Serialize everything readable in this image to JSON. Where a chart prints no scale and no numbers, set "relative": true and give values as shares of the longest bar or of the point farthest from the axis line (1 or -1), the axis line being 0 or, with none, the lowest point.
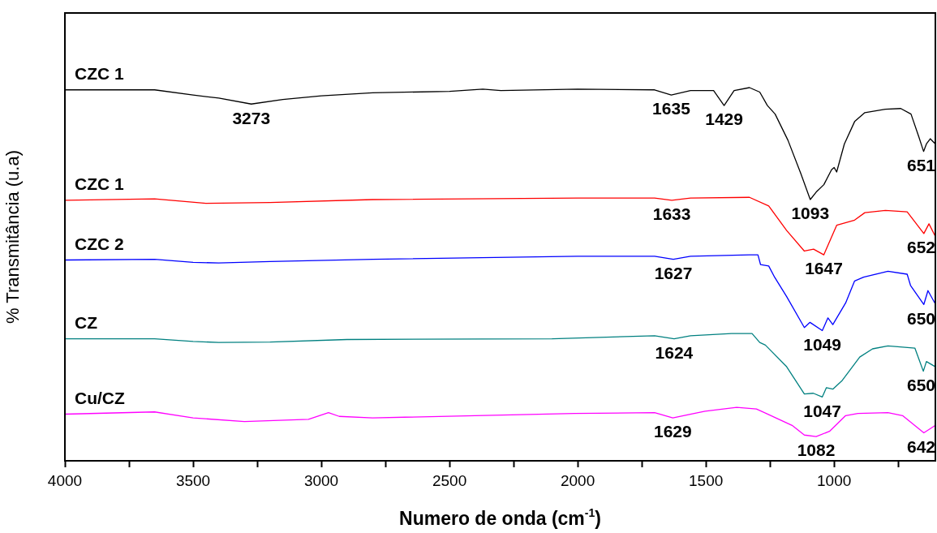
{
  "chart_data": {
    "type": "line",
    "relative": true,
    "xlabel": "Numero de onda (cm$^{-1}$)",
    "ylabel": "% Transmitância (u.a)",
    "xlim": [
      4000,
      605
    ],
    "xticks": [
      4000,
      {
        "value": 3750,
        "label": null
      },
      3500,
      {
        "value": 3250,
        "label": null
      },
      3000,
      {
        "value": 2750,
        "label": null
      },
      2500,
      {
        "value": 2250,
        "label": null
      },
      2000,
      {
        "value": 1750,
        "label": null
      },
      1500,
      {
        "value": 1250,
        "label": null
      },
      1000,
      {
        "value": 750,
        "label": null
      }
    ],
    "series": [
      {
        "name": "CZC 1",
        "color": "#000000",
        "x": [
          4000,
          3650,
          3500,
          3400,
          3273,
          3150,
          3000,
          2800,
          2500,
          2370,
          2300,
          2000,
          1700,
          1635,
          1560,
          1470,
          1429,
          1390,
          1330,
          1290,
          1260,
          1230,
          1180,
          1130,
          1093,
          1070,
          1040,
          1010,
          1000,
          990,
          960,
          920,
          880,
          800,
          740,
          700,
          670,
          651,
          640,
          625,
          605
        ],
        "values": [
          0.994,
          0.994,
          0.98,
          0.972,
          0.956,
          0.968,
          0.978,
          0.986,
          0.99,
          0.996,
          0.992,
          0.996,
          0.994,
          0.98,
          0.992,
          0.992,
          0.952,
          0.992,
          1,
          0.988,
          0.952,
          0.929,
          0.859,
          0.77,
          0.7,
          0.72,
          0.74,
          0.78,
          0.786,
          0.774,
          0.849,
          0.909,
          0.933,
          0.942,
          0.944,
          0.929,
          0.869,
          0.829,
          0.849,
          0.863,
          0.849
        ]
      },
      {
        "name": "CZC 1",
        "color": "#ff0000",
        "x": [
          4000,
          3650,
          3450,
          3200,
          2800,
          2000,
          1700,
          1633,
          1560,
          1330,
          1255,
          1185,
          1116,
          1080,
          1040,
          990,
          920,
          880,
          800,
          715,
          650,
          630,
          605
        ],
        "values": [
          0.698,
          0.702,
          0.69,
          0.692,
          0.7,
          0.704,
          0.704,
          0.698,
          0.704,
          0.706,
          0.683,
          0.617,
          0.562,
          0.567,
          0.552,
          0.631,
          0.645,
          0.665,
          0.671,
          0.667,
          0.609,
          0.635,
          0.601
        ]
      },
      {
        "name": "CZC 2",
        "color": "#0000ff",
        "x": [
          4000,
          3650,
          3500,
          3400,
          3200,
          2800,
          2000,
          1700,
          1627,
          1560,
          1330,
          1297,
          1287,
          1255,
          1232,
          1185,
          1116,
          1094,
          1046,
          1024,
          1005,
          955,
          920,
          885,
          790,
          715,
          702,
          650,
          634,
          605
        ],
        "values": [
          0.538,
          0.54,
          0.532,
          0.53,
          0.534,
          0.54,
          0.548,
          0.548,
          0.54,
          0.548,
          0.552,
          0.552,
          0.526,
          0.522,
          0.492,
          0.44,
          0.357,
          0.371,
          0.349,
          0.383,
          0.365,
          0.423,
          0.482,
          0.492,
          0.508,
          0.5,
          0.47,
          0.419,
          0.456,
          0.42
        ]
      },
      {
        "name": "CZ",
        "color": "#008080",
        "x": [
          4000,
          3650,
          3500,
          3400,
          3200,
          2900,
          2100,
          1700,
          1624,
          1560,
          1400,
          1320,
          1290,
          1268,
          1185,
          1116,
          1081,
          1046,
          1030,
          1005,
          970,
          900,
          850,
          790,
          685,
          670,
          652,
          640,
          605
        ],
        "values": [
          0.327,
          0.327,
          0.32,
          0.317,
          0.318,
          0.325,
          0.327,
          0.335,
          0.327,
          0.335,
          0.341,
          0.341,
          0.317,
          0.31,
          0.252,
          0.179,
          0.181,
          0.171,
          0.196,
          0.192,
          0.214,
          0.278,
          0.3,
          0.308,
          0.302,
          0.274,
          0.24,
          0.266,
          0.252
        ]
      },
      {
        "name": "Cu/CZ",
        "color": "#ff00ff",
        "x": [
          4000,
          3650,
          3500,
          3300,
          3050,
          2972,
          2930,
          2800,
          2400,
          2012,
          1700,
          1629,
          1503,
          1380,
          1303,
          1246,
          1164,
          1116,
          1070,
          1018,
          955,
          907,
          790,
          733,
          650,
          623,
          605
        ],
        "values": [
          0.125,
          0.131,
          0.115,
          0.105,
          0.111,
          0.129,
          0.119,
          0.115,
          0.121,
          0.127,
          0.129,
          0.115,
          0.133,
          0.143,
          0.139,
          0.121,
          0.095,
          0.069,
          0.065,
          0.079,
          0.121,
          0.127,
          0.129,
          0.121,
          0.075,
          0.087,
          0.095
        ]
      }
    ],
    "annotations": [
      {
        "text": "3273",
        "x": 3273,
        "y": 0.956
      },
      {
        "text": "1635",
        "x": 1635,
        "y": 0.98
      },
      {
        "text": "1429",
        "x": 1429,
        "y": 0.952
      },
      {
        "text": "1093",
        "x": 1093,
        "y": 0.7
      },
      {
        "text": "651",
        "x": 651,
        "y": 0.829
      },
      {
        "text": "1633",
        "x": 1633,
        "y": 0.698
      },
      {
        "text": "1647",
        "x": 1040,
        "y": 0.552
      },
      {
        "text": "652",
        "x": 650,
        "y": 0.609
      },
      {
        "text": "1627",
        "x": 1627,
        "y": 0.54
      },
      {
        "text": "1049",
        "x": 1046,
        "y": 0.349
      },
      {
        "text": "650",
        "x": 650,
        "y": 0.419
      },
      {
        "text": "1624",
        "x": 1624,
        "y": 0.327
      },
      {
        "text": "1047",
        "x": 1046,
        "y": 0.171
      },
      {
        "text": "650",
        "x": 652,
        "y": 0.24
      },
      {
        "text": "1629",
        "x": 1629,
        "y": 0.115
      },
      {
        "text": "1082",
        "x": 1070,
        "y": 0.065
      },
      {
        "text": "642",
        "x": 650,
        "y": 0.075
      }
    ]
  }
}
